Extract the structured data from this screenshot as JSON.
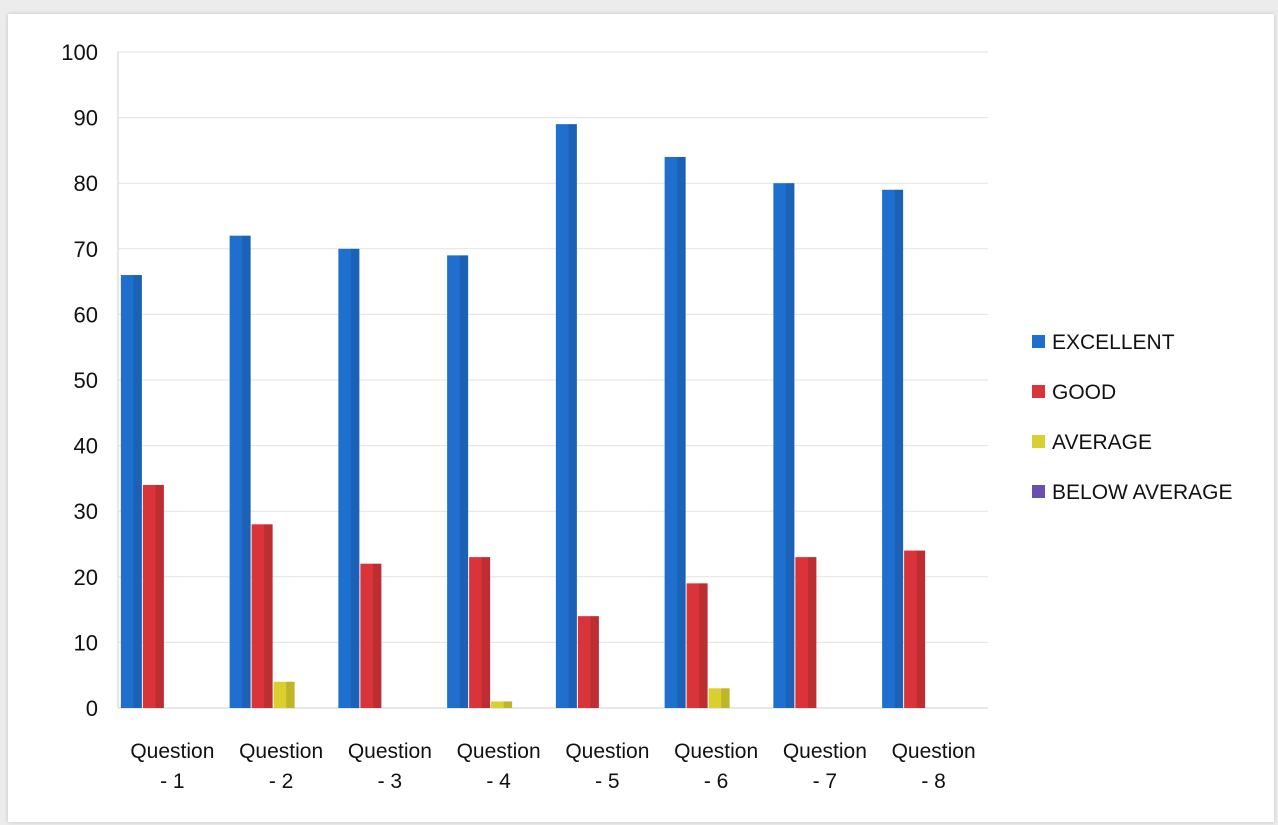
{
  "chart_data": {
    "type": "bar",
    "title": "",
    "xlabel": "",
    "ylabel": "",
    "ylim": [
      0,
      100
    ],
    "yticks": [
      0,
      10,
      20,
      30,
      40,
      50,
      60,
      70,
      80,
      90,
      100
    ],
    "grid": true,
    "legend_position": "right",
    "categories": [
      [
        "Question",
        "- 1"
      ],
      [
        "Question",
        "- 2"
      ],
      [
        "Question",
        "- 3"
      ],
      [
        "Question",
        "- 4"
      ],
      [
        "Question",
        "- 5"
      ],
      [
        "Question",
        "- 6"
      ],
      [
        "Question",
        "- 7"
      ],
      [
        "Question",
        "- 8"
      ]
    ],
    "series": [
      {
        "name": "EXCELLENT",
        "color": "#1f6fcf",
        "values": [
          66,
          72,
          70,
          69,
          89,
          84,
          80,
          79
        ]
      },
      {
        "name": "GOOD",
        "color": "#d8343a",
        "values": [
          34,
          28,
          22,
          23,
          14,
          19,
          23,
          24
        ]
      },
      {
        "name": "AVERAGE",
        "color": "#d9cf2e",
        "values": [
          0,
          4,
          0,
          1,
          0,
          3,
          0,
          0
        ]
      },
      {
        "name": "BELOW AVERAGE",
        "color": "#6a4fb3",
        "values": [
          0,
          0,
          0,
          0,
          0,
          0,
          0,
          0
        ]
      }
    ]
  }
}
